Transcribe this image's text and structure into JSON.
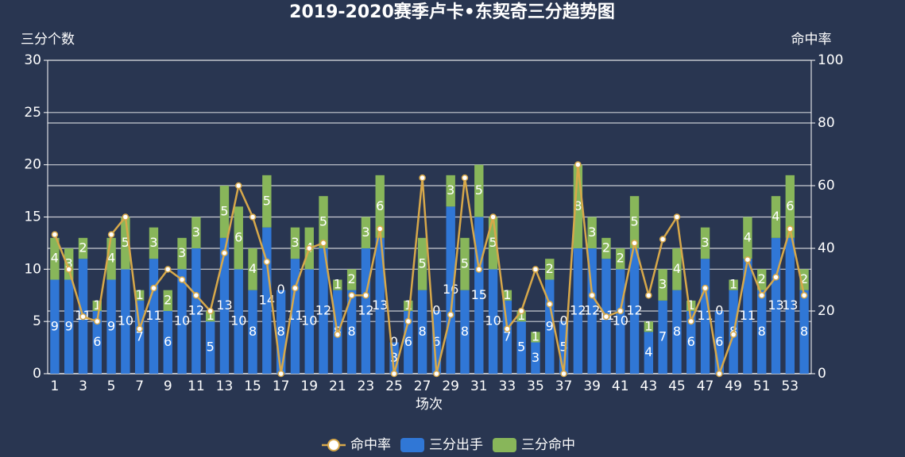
{
  "chart_data": {
    "type": "bar",
    "title": "2019-2020赛季卢卡•东契奇三分趋势图",
    "x_label": "场次",
    "y_label": "三分个数",
    "y2_label": "命中率",
    "categories": [
      "1",
      null,
      "3",
      null,
      "5",
      null,
      "7",
      null,
      "9",
      null,
      "11",
      null,
      "13",
      null,
      "15",
      null,
      "17",
      null,
      "19",
      null,
      "21",
      null,
      "23",
      null,
      "25",
      null,
      "27",
      null,
      "29",
      null,
      "31",
      null,
      "33",
      null,
      "35",
      null,
      "37",
      null,
      "39",
      null,
      "41",
      null,
      "43",
      null,
      "45",
      null,
      "47",
      null,
      "49",
      null,
      "51",
      null,
      "53",
      null
    ],
    "ylim": [
      0,
      30
    ],
    "yticks": [
      0,
      5,
      10,
      15,
      20,
      25,
      30
    ],
    "y2lim": [
      0,
      100
    ],
    "y2ticks": [
      0,
      20,
      40,
      60,
      80,
      100
    ],
    "grid": true,
    "legend": "bottom",
    "series": [
      {
        "name": "命中率",
        "type": "line",
        "axis": "y2",
        "color": "#d7a84a",
        "values": [
          44.4,
          33.3,
          18.2,
          16.7,
          44.4,
          50,
          14.3,
          27.3,
          33.3,
          30,
          25,
          20,
          38.5,
          60,
          50,
          35.7,
          0,
          27.3,
          40,
          41.7,
          12.5,
          25,
          25,
          46.2,
          0,
          16.7,
          62.5,
          0,
          18.8,
          62.5,
          33.3,
          50,
          14.3,
          20,
          33.3,
          22.2,
          0,
          66.7,
          25,
          18.2,
          20,
          41.7,
          25,
          42.9,
          50,
          16.7,
          27.3,
          0,
          12.5,
          36.4,
          25,
          30.8,
          46.2,
          25
        ]
      },
      {
        "name": "三分出手",
        "type": "bar",
        "color": "#3077d6",
        "values": [
          9,
          9,
          11,
          6,
          9,
          10,
          7,
          11,
          6,
          10,
          12,
          5,
          13,
          10,
          8,
          14,
          8,
          11,
          10,
          12,
          8,
          8,
          12,
          13,
          3,
          6,
          8,
          6,
          16,
          8,
          15,
          10,
          7,
          5,
          3,
          9,
          5,
          12,
          12,
          11,
          10,
          12,
          4,
          7,
          8,
          6,
          11,
          6,
          8,
          11,
          8,
          13,
          13,
          8
        ]
      },
      {
        "name": "三分命中",
        "type": "bar",
        "color": "#88b65a",
        "values": [
          4,
          3,
          2,
          1,
          4,
          5,
          1,
          3,
          2,
          3,
          3,
          1,
          5,
          6,
          4,
          5,
          0,
          3,
          4,
          5,
          1,
          2,
          3,
          6,
          0,
          1,
          5,
          0,
          3,
          5,
          5,
          5,
          1,
          1,
          1,
          2,
          0,
          8,
          3,
          2,
          2,
          5,
          1,
          3,
          4,
          1,
          3,
          0,
          1,
          4,
          2,
          4,
          6,
          2
        ]
      }
    ]
  }
}
